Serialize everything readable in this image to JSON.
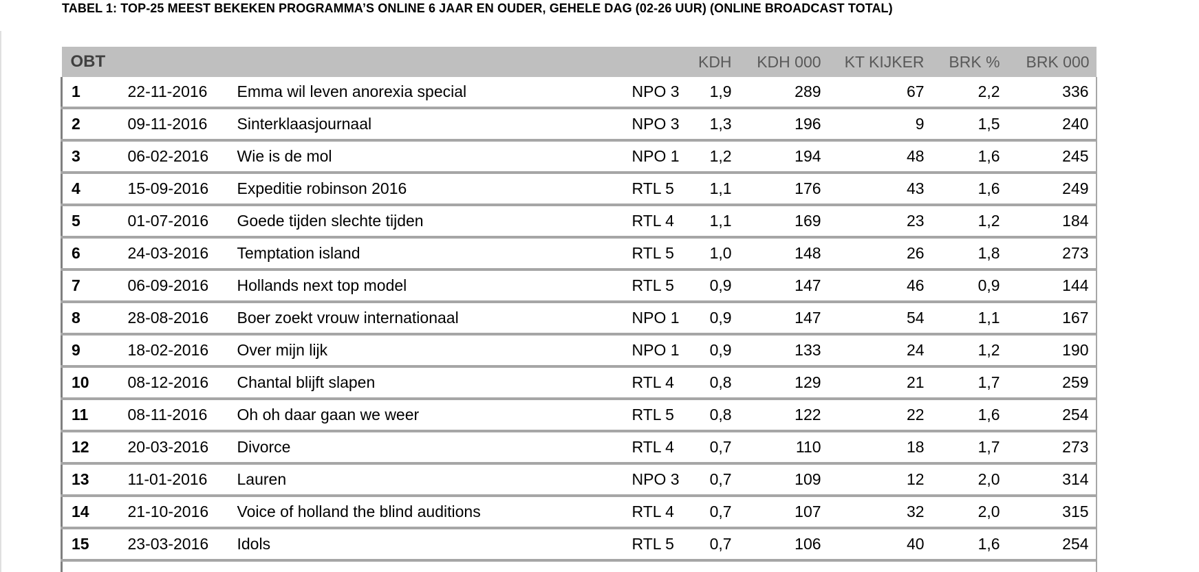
{
  "title": "TABEL 1: TOP-25 MEEST BEKEKEN PROGRAMMA’S ONLINE 6 JAAR EN OUDER, GEHELE DAG (02-26 UUR) (ONLINE BROADCAST TOTAL)",
  "table": {
    "corner_label": "OBT",
    "numeric_headers": [
      "KDH",
      "KDH 000",
      "KT KIJKER",
      "BRK %",
      "BRK 000"
    ],
    "rows": [
      {
        "rank": "1",
        "date": "22-11-2016",
        "program": "Emma wil leven anorexia special",
        "channel": "NPO 3",
        "kdh": "1,9",
        "kdh_000": "289",
        "kt_kijker": "67",
        "brk_pct": "2,2",
        "brk_000": "336"
      },
      {
        "rank": "2",
        "date": "09-11-2016",
        "program": "Sinterklaasjournaal",
        "channel": "NPO 3",
        "kdh": "1,3",
        "kdh_000": "196",
        "kt_kijker": "9",
        "brk_pct": "1,5",
        "brk_000": "240"
      },
      {
        "rank": "3",
        "date": "06-02-2016",
        "program": "Wie is de mol",
        "channel": "NPO 1",
        "kdh": "1,2",
        "kdh_000": "194",
        "kt_kijker": "48",
        "brk_pct": "1,6",
        "brk_000": "245"
      },
      {
        "rank": "4",
        "date": "15-09-2016",
        "program": "Expeditie robinson 2016",
        "channel": "RTL 5",
        "kdh": "1,1",
        "kdh_000": "176",
        "kt_kijker": "43",
        "brk_pct": "1,6",
        "brk_000": "249"
      },
      {
        "rank": "5",
        "date": "01-07-2016",
        "program": "Goede tijden slechte tijden",
        "channel": "RTL 4",
        "kdh": "1,1",
        "kdh_000": "169",
        "kt_kijker": "23",
        "brk_pct": "1,2",
        "brk_000": "184"
      },
      {
        "rank": "6",
        "date": "24-03-2016",
        "program": "Temptation island",
        "channel": "RTL 5",
        "kdh": "1,0",
        "kdh_000": "148",
        "kt_kijker": "26",
        "brk_pct": "1,8",
        "brk_000": "273"
      },
      {
        "rank": "7",
        "date": "06-09-2016",
        "program": "Hollands next top model",
        "channel": "RTL 5",
        "kdh": "0,9",
        "kdh_000": "147",
        "kt_kijker": "46",
        "brk_pct": "0,9",
        "brk_000": "144"
      },
      {
        "rank": "8",
        "date": "28-08-2016",
        "program": "Boer zoekt vrouw internationaal",
        "channel": "NPO 1",
        "kdh": "0,9",
        "kdh_000": "147",
        "kt_kijker": "54",
        "brk_pct": "1,1",
        "brk_000": "167"
      },
      {
        "rank": "9",
        "date": "18-02-2016",
        "program": "Over mijn lijk",
        "channel": "NPO 1",
        "kdh": "0,9",
        "kdh_000": "133",
        "kt_kijker": "24",
        "brk_pct": "1,2",
        "brk_000": "190"
      },
      {
        "rank": "10",
        "date": "08-12-2016",
        "program": "Chantal blijft slapen",
        "channel": "RTL 4",
        "kdh": "0,8",
        "kdh_000": "129",
        "kt_kijker": "21",
        "brk_pct": "1,7",
        "brk_000": "259"
      },
      {
        "rank": "11",
        "date": "08-11-2016",
        "program": "Oh oh daar gaan we weer",
        "channel": "RTL 5",
        "kdh": "0,8",
        "kdh_000": "122",
        "kt_kijker": "22",
        "brk_pct": "1,6",
        "brk_000": "254"
      },
      {
        "rank": "12",
        "date": "20-03-2016",
        "program": "Divorce",
        "channel": "RTL 4",
        "kdh": "0,7",
        "kdh_000": "110",
        "kt_kijker": "18",
        "brk_pct": "1,7",
        "brk_000": "273"
      },
      {
        "rank": "13",
        "date": "11-01-2016",
        "program": "Lauren",
        "channel": "NPO 3",
        "kdh": "0,7",
        "kdh_000": "109",
        "kt_kijker": "12",
        "brk_pct": "2,0",
        "brk_000": "314"
      },
      {
        "rank": "14",
        "date": "21-10-2016",
        "program": "Voice of holland the blind auditions",
        "channel": "RTL 4",
        "kdh": "0,7",
        "kdh_000": "107",
        "kt_kijker": "32",
        "brk_pct": "2,0",
        "brk_000": "315"
      },
      {
        "rank": "15",
        "date": "23-03-2016",
        "program": "Idols",
        "channel": "RTL 5",
        "kdh": "0,7",
        "kdh_000": "106",
        "kt_kijker": "40",
        "brk_pct": "1,6",
        "brk_000": "254"
      }
    ]
  },
  "colors": {
    "header_background": "#bfbfbf",
    "header_text": "#595959",
    "corner_text": "#404040",
    "row_separator": "#a6a6a6",
    "table_left_border": "#7f7f7f",
    "body_text": "#000000",
    "page_background": "#ffffff"
  }
}
